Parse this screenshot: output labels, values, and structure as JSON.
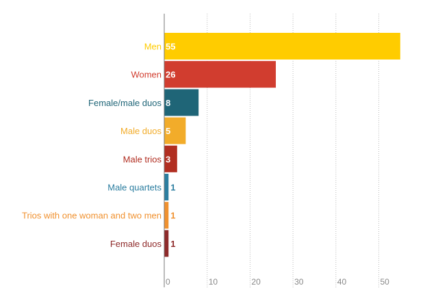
{
  "chart_data": {
    "type": "bar",
    "orientation": "horizontal",
    "categories": [
      "Men",
      "Women",
      "Female/male duos",
      "Male duos",
      "Male trios",
      "Male quartets",
      "Trios with one woman and two men",
      "Female duos"
    ],
    "values": [
      55,
      26,
      8,
      5,
      3,
      1,
      1,
      1
    ],
    "value_labels": [
      "55",
      "26",
      "8",
      "5",
      "3",
      "1",
      "1",
      "1"
    ],
    "colors": [
      "#FFCC00",
      "#D13D2F",
      "#1F6577",
      "#F2AC2A",
      "#B12E21",
      "#2C7EA0",
      "#F0912F",
      "#8E2A2A"
    ],
    "xlim": [
      0,
      56
    ],
    "xticks": [
      0,
      10,
      20,
      30,
      40,
      50
    ],
    "xtick_labels": [
      "0",
      "10",
      "20",
      "30",
      "40",
      "50"
    ],
    "grid": "vertical dotted",
    "title": "",
    "xlabel": "",
    "ylabel": ""
  }
}
